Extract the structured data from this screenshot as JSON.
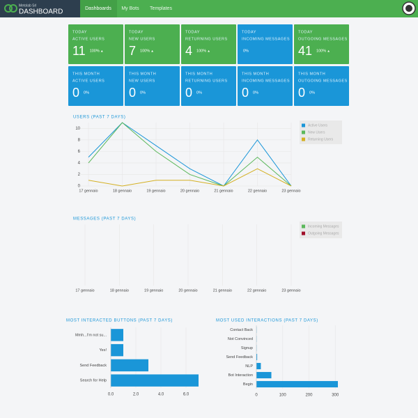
{
  "header": {
    "company": "Metolab Srl",
    "title": "DASHBOARD"
  },
  "nav": [
    "Dashboards",
    "My Bots",
    "Templates"
  ],
  "cards": [
    [
      {
        "period": "TODAY",
        "metric": "ACTIVE USERS",
        "value": 11,
        "percent": "100%",
        "trend": "up",
        "color": "#4caf50"
      },
      {
        "period": "TODAY",
        "metric": "NEW USERS",
        "value": 7,
        "percent": "100%",
        "trend": "up",
        "color": "#4caf50"
      },
      {
        "period": "TODAY",
        "metric": "RETURNING USERS",
        "value": 4,
        "percent": "100%",
        "trend": "up",
        "color": "#4caf50"
      },
      {
        "period": "TODAY",
        "metric": "INCOMING MESSAGES",
        "percent": "0%",
        "color": "#1a96d8"
      },
      {
        "period": "TODAY",
        "metric": "OUTGOING MESSAGES",
        "value": 41,
        "percent": "100%",
        "trend": "up",
        "color": "#4caf50"
      }
    ],
    [
      {
        "period": "THIS MONTH",
        "metric": "ACTIVE USERS",
        "value": 0,
        "percent": "0%",
        "color": "#1a96d8"
      },
      {
        "period": "THIS MONTH",
        "metric": "NEW USERS",
        "value": 0,
        "percent": "0%",
        "color": "#1a96d8"
      },
      {
        "period": "THIS MONTH",
        "metric": "RETURNING USERS",
        "value": 0,
        "percent": "0%",
        "color": "#1a96d8"
      },
      {
        "period": "THIS MONTH",
        "metric": "INCOMING MESSAGES",
        "value": 0,
        "percent": "0%",
        "color": "#1a96d8"
      },
      {
        "period": "THIS MONTH",
        "metric": "OUTGOING MESSAGES",
        "value": 0,
        "percent": "0%",
        "color": "#1a96d8"
      }
    ]
  ],
  "chart_data": [
    {
      "type": "line",
      "title": "USERS (PAST 7 DAYS)",
      "categories": [
        "17 gennaio",
        "18 gennaio",
        "19 gennaio",
        "20 gennaio",
        "21 gennaio",
        "22 gennaio",
        "23 gennaio"
      ],
      "series": [
        {
          "name": "Active Users",
          "color": "#1a96d8",
          "values": [
            5,
            11,
            7,
            3,
            0,
            8,
            0
          ]
        },
        {
          "name": "New Users",
          "color": "#5cb85c",
          "values": [
            4,
            11,
            6,
            2,
            0,
            5,
            0
          ]
        },
        {
          "name": "Returning Users",
          "color": "#d4b022",
          "values": [
            1,
            0,
            1,
            1,
            0,
            3,
            0
          ]
        }
      ],
      "ylim": [
        0,
        11
      ],
      "yticks": [
        0,
        2,
        4,
        6,
        8,
        10
      ],
      "grid": true
    },
    {
      "type": "line",
      "title": "MESSAGES (PAST 7 DAYS)",
      "categories": [
        "17 gennaio",
        "18 gennaio",
        "19 gennaio",
        "20 gennaio",
        "21 gennaio",
        "22 gennaio",
        "23 gennaio"
      ],
      "series": [
        {
          "name": "Incoming Messages",
          "color": "#5cb85c",
          "values": [
            null,
            null,
            null,
            null,
            null,
            null,
            null
          ]
        },
        {
          "name": "Outgoing Messages",
          "color": "#a0102a",
          "values": [
            null,
            null,
            null,
            null,
            null,
            null,
            null
          ]
        }
      ],
      "grid": true
    },
    {
      "type": "hbar",
      "title": "MOST INTERACTED BUTTONS (PAST 7 DAYS)",
      "categories": [
        "Mmh...I'm not su...",
        "Yes!",
        "Send Feedback",
        "Search for Help"
      ],
      "values": [
        1,
        1,
        3,
        7
      ],
      "color": "#1a96d8",
      "xlim": [
        0,
        7
      ],
      "xticks": [
        {
          "value": 0,
          "label": "0.0"
        },
        {
          "value": 2,
          "label": "2.0"
        },
        {
          "value": 4,
          "label": "4.0"
        },
        {
          "value": 6,
          "label": "6.0"
        }
      ],
      "grid": true
    },
    {
      "type": "hbar",
      "title": "MOST USED INTERACTIONS (PAST 7 DAYS)",
      "categories": [
        "Contact Back",
        "Not Convinced",
        "Signup",
        "Send Feedback",
        "NLP",
        "Bot Interaction",
        "Begin"
      ],
      "values": [
        1,
        1,
        1,
        3,
        17,
        57,
        310
      ],
      "color": "#1a96d8",
      "xlim": [
        0,
        310
      ],
      "xticks": [
        0,
        100,
        200,
        300
      ],
      "grid": true
    }
  ]
}
